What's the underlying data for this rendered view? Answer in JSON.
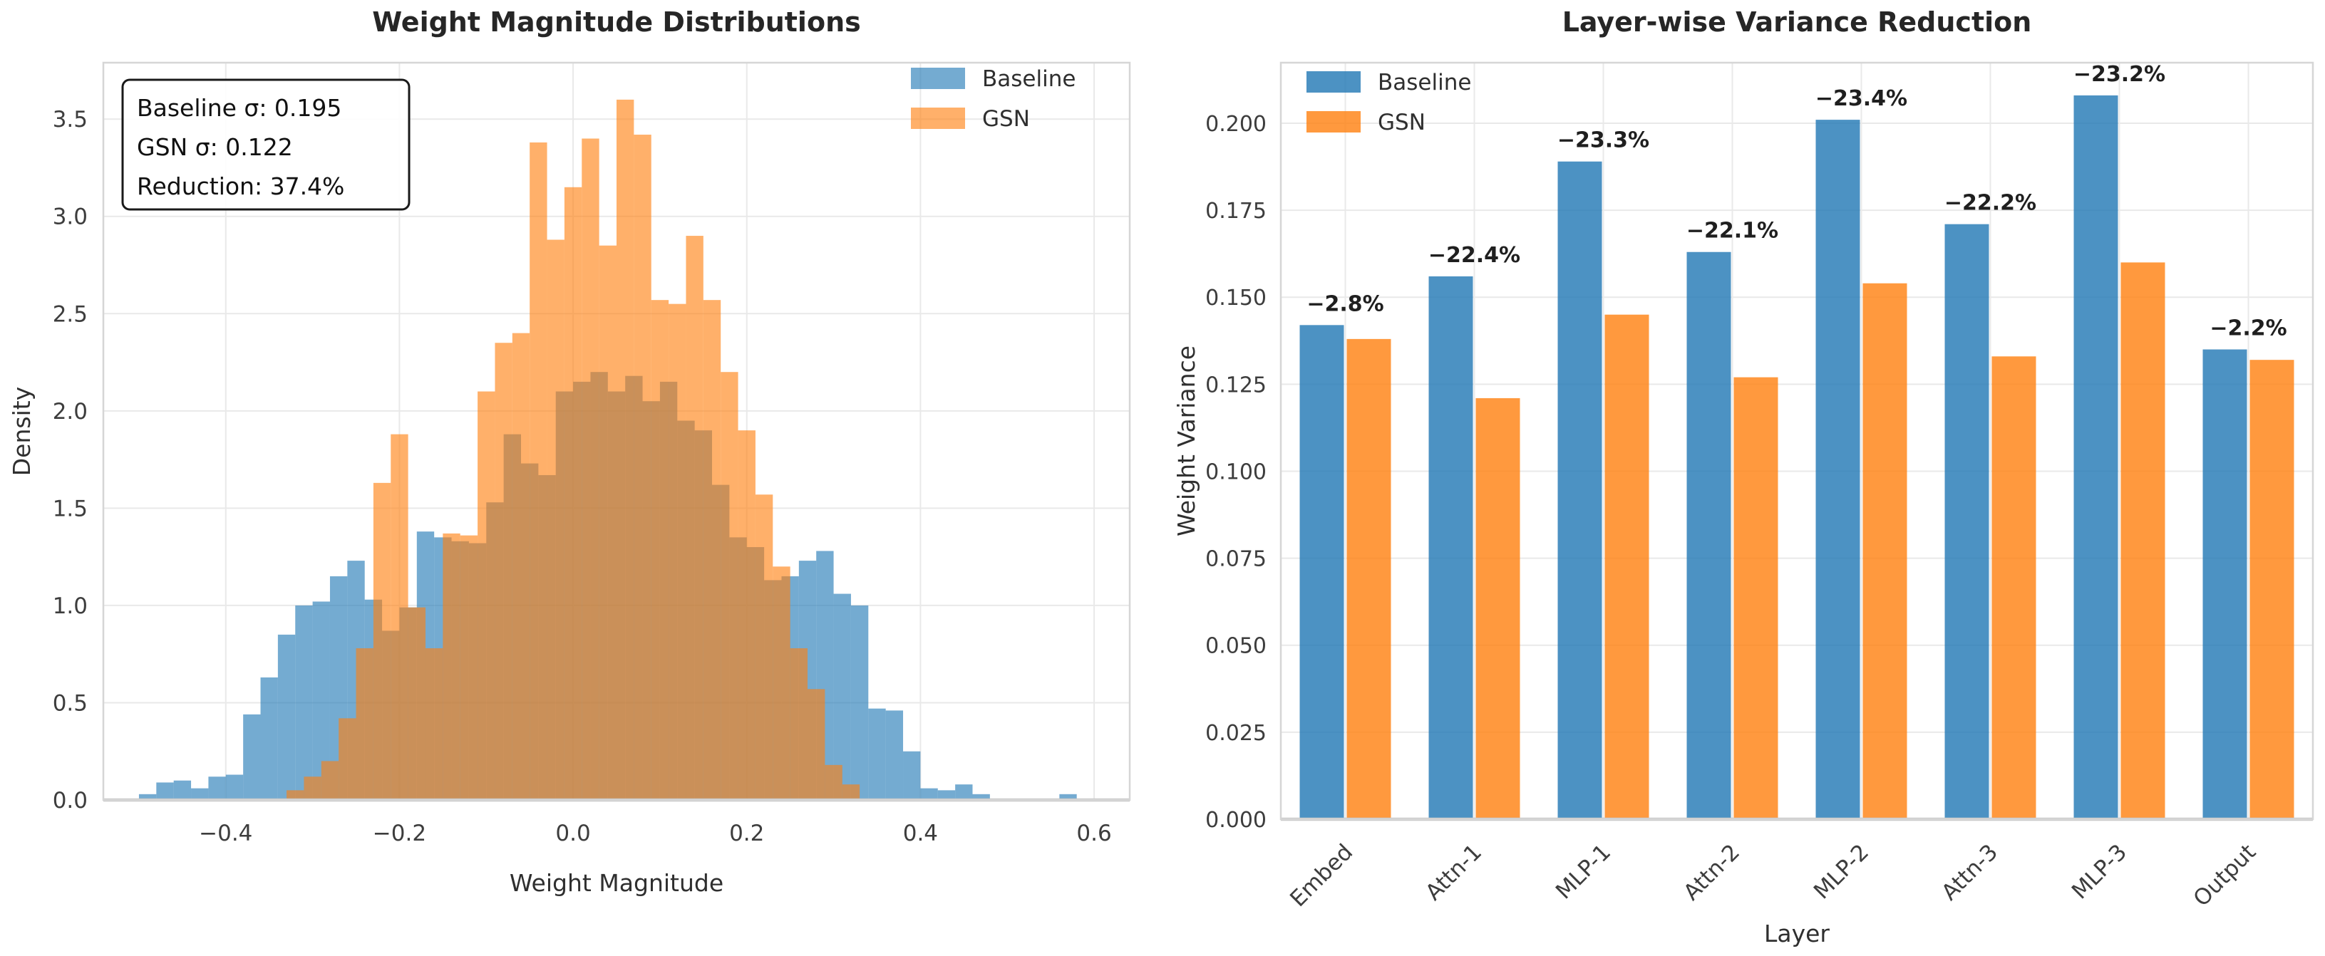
{
  "page": {
    "background": "#ffffff"
  },
  "colors": {
    "baseline": "#1f77b4",
    "gsn": "#ff7f0e",
    "grid": "#e9e9e9",
    "spine": "#d6d6d6",
    "axis_line": "#c8c8c8",
    "title_text": "#262626",
    "label_text": "#2f2f2f",
    "tick_text": "#3d3d3d",
    "annotation_text": "#1f1f1f"
  },
  "chart_data": [
    {
      "type": "histogram",
      "title": "Weight Magnitude Distributions",
      "xlabel": "Weight Magnitude",
      "ylabel": "Density",
      "grid": true,
      "legend_position": "upper right",
      "legend": [
        "Baseline",
        "GSN"
      ],
      "annotation_box": {
        "position": "upper left",
        "lines": [
          "Baseline σ: 0.195",
          "GSN σ: 0.122",
          "Reduction: 37.4%"
        ]
      },
      "xlim": [
        -0.541,
        0.641
      ],
      "ylim": [
        0,
        3.79
      ],
      "xtick_values": [
        -0.4,
        -0.2,
        0.0,
        0.2,
        0.4,
        0.6
      ],
      "xtick_labels": [
        "−0.4",
        "−0.2",
        "0.0",
        "0.2",
        "0.4",
        "0.6"
      ],
      "ytick_values": [
        0.0,
        0.5,
        1.0,
        1.5,
        2.0,
        2.5,
        3.0,
        3.5
      ],
      "ytick_labels": [
        "0.0",
        "0.5",
        "1.0",
        "1.5",
        "2.0",
        "2.5",
        "3.0",
        "3.5"
      ],
      "series": [
        {
          "name": "Baseline",
          "color": "#1f77b4",
          "alpha": 0.62,
          "bin_start": -0.5,
          "bin_width": 0.02,
          "densities": [
            0.03,
            0.09,
            0.1,
            0.06,
            0.12,
            0.13,
            0.44,
            0.63,
            0.85,
            1.0,
            1.02,
            1.15,
            1.23,
            1.03,
            0.87,
            0.99,
            1.38,
            1.35,
            1.33,
            1.32,
            1.53,
            1.88,
            1.73,
            1.67,
            2.1,
            2.15,
            2.2,
            2.1,
            2.18,
            2.05,
            2.15,
            1.95,
            1.9,
            1.62,
            1.35,
            1.3,
            1.13,
            1.15,
            1.23,
            1.28,
            1.06,
            1.0,
            0.47,
            0.46,
            0.25,
            0.06,
            0.05,
            0.08,
            0.03,
            0.0,
            0.0,
            0.0,
            0.0,
            0.03
          ]
        },
        {
          "name": "GSN",
          "color": "#ff7f0e",
          "alpha": 0.62,
          "bin_start": -0.33,
          "bin_width": 0.02,
          "densities": [
            0.05,
            0.12,
            0.2,
            0.42,
            0.78,
            1.63,
            1.88,
            0.99,
            0.78,
            1.37,
            1.36,
            2.1,
            2.35,
            2.4,
            3.38,
            2.88,
            3.15,
            3.4,
            2.85,
            3.6,
            3.42,
            2.57,
            2.55,
            2.9,
            2.57,
            2.2,
            1.9,
            1.57,
            1.2,
            0.78,
            0.57,
            0.18,
            0.08
          ]
        }
      ]
    },
    {
      "type": "bar",
      "title": "Layer-wise Variance Reduction",
      "xlabel": "Layer",
      "ylabel": "Weight Variance",
      "grid": true,
      "legend_position": "upper left",
      "legend": [
        "Baseline",
        "GSN"
      ],
      "categories": [
        "Embed",
        "Attn-1",
        "MLP-1",
        "Attn-2",
        "MLP-2",
        "Attn-3",
        "MLP-3",
        "Output"
      ],
      "series": [
        {
          "name": "Baseline",
          "color": "#1f77b4",
          "alpha": 0.8,
          "values": [
            0.142,
            0.156,
            0.189,
            0.163,
            0.201,
            0.171,
            0.208,
            0.135
          ]
        },
        {
          "name": "GSN",
          "color": "#ff7f0e",
          "alpha": 0.8,
          "values": [
            0.138,
            0.121,
            0.145,
            0.127,
            0.154,
            0.133,
            0.16,
            0.132
          ]
        }
      ],
      "bar_labels": [
        "−2.8%",
        "−22.4%",
        "−23.3%",
        "−22.1%",
        "−23.4%",
        "−22.2%",
        "−23.2%",
        "−2.2%"
      ],
      "ylim": [
        0,
        0.2174
      ],
      "ytick_values": [
        0.0,
        0.025,
        0.05,
        0.075,
        0.1,
        0.125,
        0.15,
        0.175,
        0.2
      ],
      "ytick_labels": [
        "0.000",
        "0.025",
        "0.050",
        "0.075",
        "0.100",
        "0.125",
        "0.150",
        "0.175",
        "0.200"
      ]
    }
  ]
}
